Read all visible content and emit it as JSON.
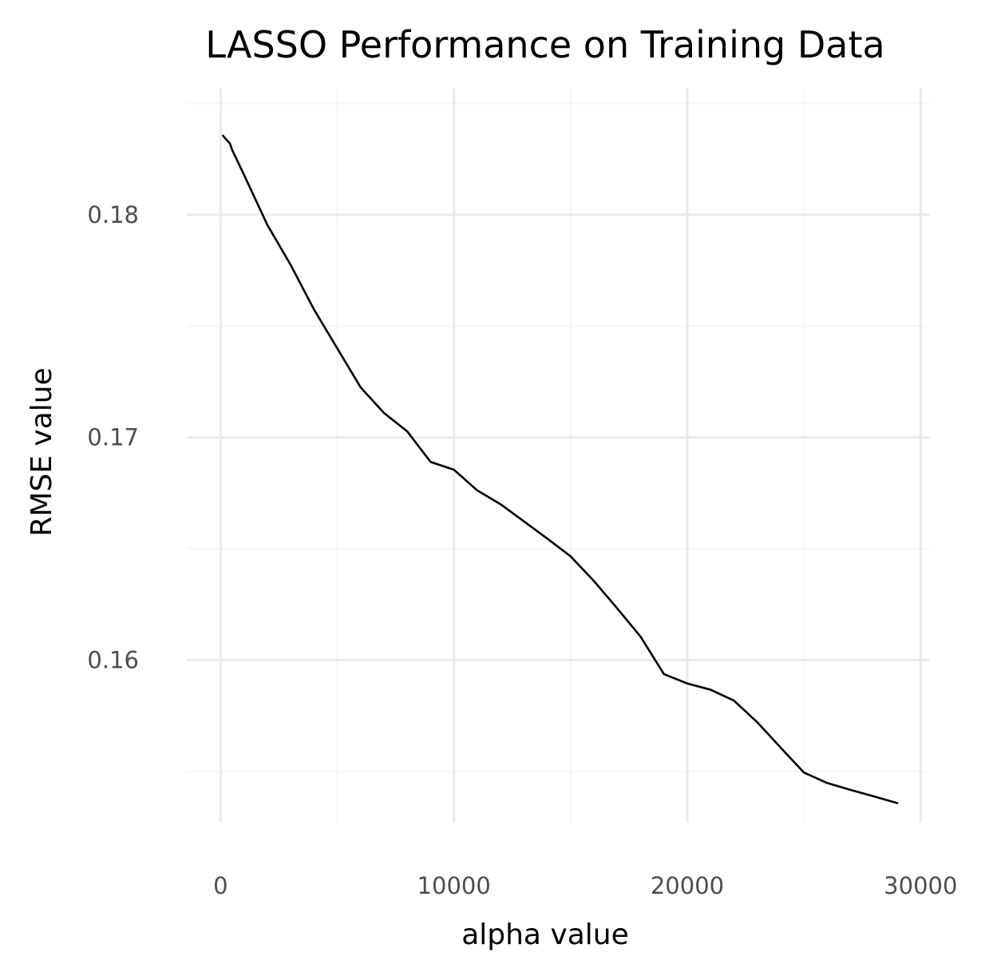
{
  "chart_data": {
    "type": "line",
    "title": "LASSO Performance on Training Data",
    "xlabel": "alpha value",
    "ylabel": "RMSE value",
    "xlim": [
      -1450,
      30400
    ],
    "ylim": [
      0.1527,
      0.1857
    ],
    "x_ticks": [
      0,
      10000,
      20000,
      30000
    ],
    "x_tick_labels": [
      "0",
      "10000",
      "20000",
      "30000"
    ],
    "x_minor_ticks": [
      5000,
      15000,
      25000
    ],
    "y_ticks": [
      0.16,
      0.17,
      0.18
    ],
    "y_tick_labels": [
      "0.16",
      "0.17",
      "0.18"
    ],
    "y_minor_ticks": [
      0.155,
      0.165,
      0.175,
      0.185
    ],
    "grid": true,
    "legend": "none",
    "line_color": "#000000",
    "series": [
      {
        "x": [
          100,
          400,
          500,
          1000,
          2000,
          3000,
          4000,
          5000,
          6000,
          7000,
          8000,
          9000,
          10000,
          11000,
          12000,
          13000,
          14000,
          15000,
          16000,
          17000,
          18000,
          19000,
          20000,
          21000,
          22000,
          23000,
          24000,
          25000,
          26000,
          27000,
          28000,
          29000
        ],
        "y": [
          0.18355,
          0.1832,
          0.1829,
          0.1818,
          0.17955,
          0.17775,
          0.17575,
          0.174,
          0.17225,
          0.1711,
          0.17027,
          0.1689,
          0.16855,
          0.16762,
          0.167,
          0.16623,
          0.16546,
          0.16466,
          0.16355,
          0.16232,
          0.16105,
          0.15937,
          0.15895,
          0.15867,
          0.15818,
          0.15721,
          0.15607,
          0.15495,
          0.15448,
          0.15417,
          0.15388,
          0.15358
        ]
      }
    ]
  }
}
